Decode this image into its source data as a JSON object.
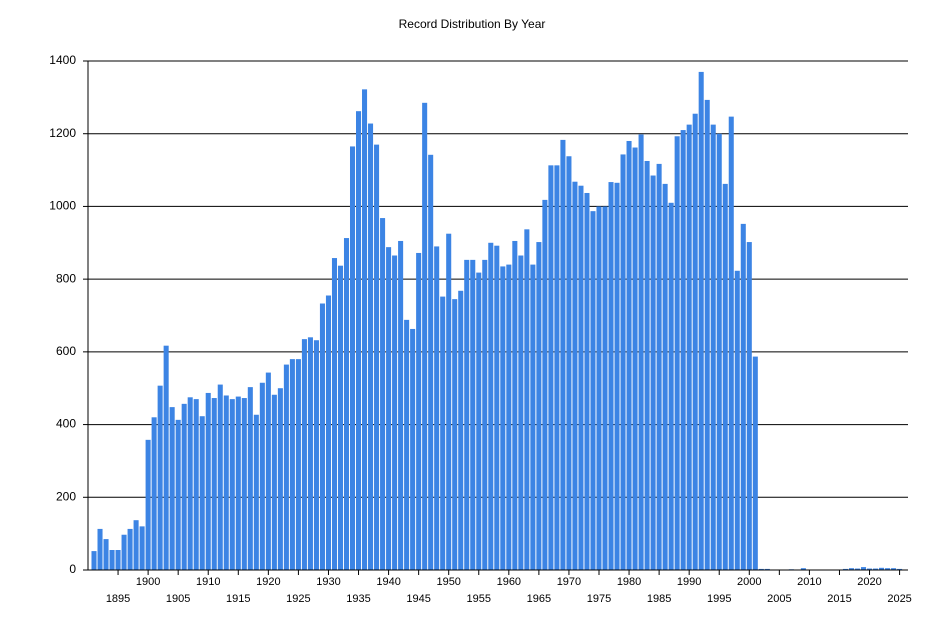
{
  "chart_data": {
    "type": "bar",
    "title": "Record Distribution By Year",
    "x": [
      1891,
      1892,
      1893,
      1894,
      1895,
      1896,
      1897,
      1898,
      1899,
      1900,
      1901,
      1902,
      1903,
      1904,
      1905,
      1906,
      1907,
      1908,
      1909,
      1910,
      1911,
      1912,
      1913,
      1914,
      1915,
      1916,
      1917,
      1918,
      1919,
      1920,
      1921,
      1922,
      1923,
      1924,
      1925,
      1926,
      1927,
      1928,
      1929,
      1930,
      1931,
      1932,
      1933,
      1934,
      1935,
      1936,
      1937,
      1938,
      1939,
      1940,
      1941,
      1942,
      1943,
      1944,
      1945,
      1946,
      1947,
      1948,
      1949,
      1950,
      1951,
      1952,
      1953,
      1954,
      1955,
      1956,
      1957,
      1958,
      1959,
      1960,
      1961,
      1962,
      1963,
      1964,
      1965,
      1966,
      1967,
      1968,
      1969,
      1970,
      1971,
      1972,
      1973,
      1974,
      1975,
      1976,
      1977,
      1978,
      1979,
      1980,
      1981,
      1982,
      1983,
      1984,
      1985,
      1986,
      1987,
      1988,
      1989,
      1990,
      1991,
      1992,
      1993,
      1994,
      1995,
      1996,
      1997,
      1998,
      1999,
      2000,
      2001,
      2002,
      2003,
      2004,
      2005,
      2006,
      2007,
      2008,
      2009,
      2010,
      2011,
      2012,
      2013,
      2014,
      2015,
      2016,
      2017,
      2018,
      2019,
      2020,
      2021,
      2022,
      2023,
      2024,
      2025
    ],
    "values": [
      52,
      113,
      85,
      55,
      55,
      97,
      113,
      137,
      120,
      358,
      420,
      507,
      617,
      448,
      413,
      457,
      475,
      470,
      423,
      487,
      473,
      510,
      480,
      470,
      477,
      473,
      503,
      427,
      515,
      543,
      482,
      500,
      565,
      580,
      580,
      635,
      640,
      632,
      733,
      755,
      858,
      837,
      913,
      1165,
      1262,
      1322,
      1228,
      1170,
      968,
      888,
      865,
      905,
      688,
      663,
      872,
      1285,
      1142,
      890,
      752,
      925,
      745,
      768,
      853,
      853,
      818,
      853,
      900,
      892,
      835,
      840,
      905,
      865,
      937,
      840,
      902,
      1018,
      1113,
      1113,
      1183,
      1138,
      1068,
      1057,
      1037,
      987,
      1000,
      1000,
      1067,
      1065,
      1143,
      1180,
      1162,
      1198,
      1125,
      1085,
      1117,
      1062,
      1010,
      1193,
      1210,
      1225,
      1255,
      1370,
      1293,
      1225,
      1200,
      1062,
      1247,
      823,
      952,
      902,
      587,
      3,
      3,
      0,
      0,
      0,
      2,
      0,
      5,
      0,
      0,
      0,
      0,
      0,
      0,
      3,
      5,
      4,
      8,
      4,
      4,
      6,
      5,
      5,
      3
    ],
    "color": "#3c84e4",
    "xlim": [
      1890,
      2026.4
    ],
    "xticks": [
      1895,
      1900,
      1905,
      1910,
      1915,
      1920,
      1925,
      1930,
      1935,
      1940,
      1945,
      1950,
      1955,
      1960,
      1965,
      1970,
      1975,
      1980,
      1985,
      1990,
      1995,
      2000,
      2005,
      2010,
      2015,
      2020,
      2025
    ],
    "ylim": [
      0,
      1400
    ],
    "yticks": [
      0,
      200,
      400,
      600,
      800,
      1000,
      1200,
      1400
    ],
    "grid": true
  }
}
